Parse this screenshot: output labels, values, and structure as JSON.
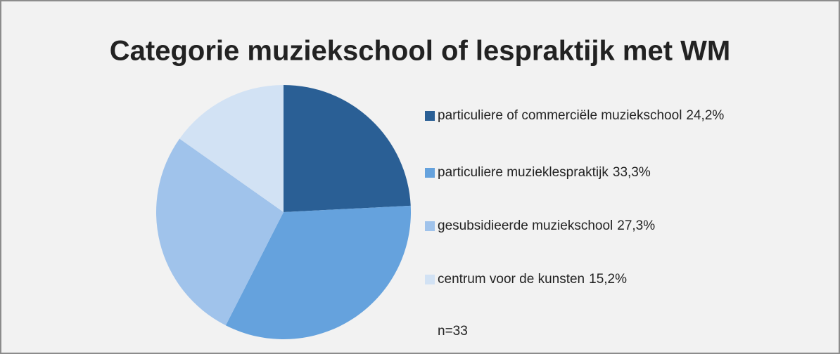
{
  "chart_data": {
    "type": "pie",
    "title": "Categorie muziekschool of lespraktijk met WM",
    "categories": [
      "particuliere of commerciële muziekschool",
      "particuliere muzieklespraktijk",
      "gesubsidieerde muziekschool",
      "centrum voor de kunsten"
    ],
    "values": [
      24.2,
      33.3,
      27.3,
      15.2
    ],
    "value_labels": [
      "24,2%",
      "33,3%",
      "27,3%",
      "15,2%"
    ],
    "colors": [
      "#2a5f95",
      "#65a2dd",
      "#a0c3eb",
      "#d2e2f4"
    ],
    "note": "n=33",
    "legend": "right"
  }
}
